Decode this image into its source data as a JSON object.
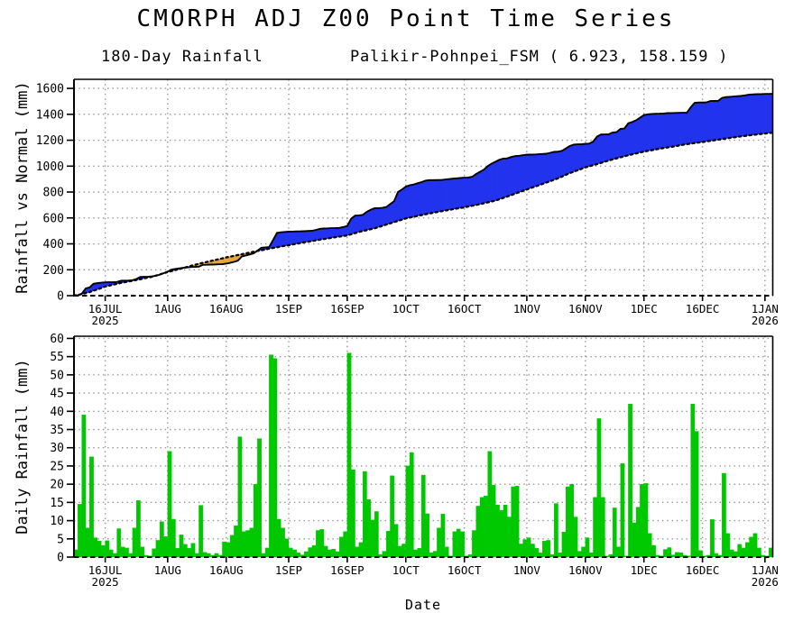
{
  "title": "CMORPH ADJ Z00 Point Time Series",
  "station_label": "Palikir-Pohnpei_FSM ( 6.923, 158.159 )",
  "xlabel": "Date",
  "chart_data": [
    {
      "type": "area",
      "title": "180-Day Rainfall",
      "ylabel": "Rainfall vs Normal (mm)",
      "ylim": [
        0,
        1670
      ],
      "yticks": [
        0,
        200,
        400,
        600,
        800,
        1000,
        1200,
        1400,
        1600
      ],
      "x_days_total": 179,
      "xticks": [
        {
          "day": 8,
          "label": "16JUL",
          "sublabel": "2025"
        },
        {
          "day": 24,
          "label": "1AUG"
        },
        {
          "day": 39,
          "label": "16AUG"
        },
        {
          "day": 55,
          "label": "1SEP"
        },
        {
          "day": 70,
          "label": "16SEP"
        },
        {
          "day": 85,
          "label": "1OCT"
        },
        {
          "day": 100,
          "label": "16OCT"
        },
        {
          "day": 116,
          "label": "1NOV"
        },
        {
          "day": 131,
          "label": "16NOV"
        },
        {
          "day": 146,
          "label": "1DEC"
        },
        {
          "day": 161,
          "label": "16DEC"
        },
        {
          "day": 177,
          "label": "1JAN",
          "sublabel": "2026"
        }
      ],
      "grid_color": "#999999",
      "fill_above_color": "#2233ee",
      "fill_below_color": "#e3a83a",
      "series": [
        {
          "name": "observed_accumulated_rainfall",
          "line": "solid",
          "color": "#000000",
          "points": [
            [
              0,
              0
            ],
            [
              1,
              3
            ],
            [
              2,
              16
            ],
            [
              3,
              56
            ],
            [
              4,
              64
            ],
            [
              5,
              92
            ],
            [
              6,
              97
            ],
            [
              7,
              100
            ],
            [
              8,
              103
            ],
            [
              10,
              104
            ],
            [
              11,
              106
            ],
            [
              12,
              115
            ],
            [
              14,
              117
            ],
            [
              15,
              120
            ],
            [
              16,
              129
            ],
            [
              17,
              145
            ],
            [
              19,
              146
            ],
            [
              20,
              149
            ],
            [
              21,
              153
            ],
            [
              22,
              163
            ],
            [
              23,
              174
            ],
            [
              24,
              186
            ],
            [
              25,
              202
            ],
            [
              26,
              207
            ],
            [
              27,
              211
            ],
            [
              28,
              215
            ],
            [
              29,
              218
            ],
            [
              30,
              221
            ],
            [
              31,
              222
            ],
            [
              32,
              224
            ],
            [
              33,
              238
            ],
            [
              35,
              240
            ],
            [
              36,
              241
            ],
            [
              38,
              243
            ],
            [
              39,
              247
            ],
            [
              40,
              253
            ],
            [
              41,
              261
            ],
            [
              42,
              270
            ],
            [
              43,
              303
            ],
            [
              44,
              310
            ],
            [
              45,
              318
            ],
            [
              46,
              326
            ],
            [
              47,
              348
            ],
            [
              48,
              370
            ],
            [
              49,
              372
            ],
            [
              50,
              375
            ],
            [
              51,
              430
            ],
            [
              52,
              484
            ],
            [
              53,
              489
            ],
            [
              54,
              492
            ],
            [
              55,
              494
            ],
            [
              57,
              496
            ],
            [
              59,
              498
            ],
            [
              61,
              501
            ],
            [
              62,
              508
            ],
            [
              63,
              516
            ],
            [
              64,
              519
            ],
            [
              66,
              521
            ],
            [
              68,
              523
            ],
            [
              69,
              530
            ],
            [
              70,
              538
            ],
            [
              71,
              594
            ],
            [
              72,
              618
            ],
            [
              73,
              620
            ],
            [
              74,
              624
            ],
            [
              75,
              647
            ],
            [
              76,
              663
            ],
            [
              77,
              675
            ],
            [
              78,
              676
            ],
            [
              79,
              678
            ],
            [
              80,
              685
            ],
            [
              81,
              707
            ],
            [
              82,
              729
            ],
            [
              83,
              800
            ],
            [
              84,
              820
            ],
            [
              85,
              842
            ],
            [
              86,
              852
            ],
            [
              87,
              858
            ],
            [
              88,
              868
            ],
            [
              89,
              876
            ],
            [
              90,
              888
            ],
            [
              91,
              892
            ],
            [
              94,
              893
            ],
            [
              96,
              900
            ],
            [
              98,
              906
            ],
            [
              100,
              911
            ],
            [
              101,
              912
            ],
            [
              102,
              918
            ],
            [
              103,
              939
            ],
            [
              104,
              956
            ],
            [
              105,
              973
            ],
            [
              106,
              1000
            ],
            [
              107,
              1020
            ],
            [
              108,
              1035
            ],
            [
              109,
              1050
            ],
            [
              110,
              1058
            ],
            [
              111,
              1060
            ],
            [
              112,
              1070
            ],
            [
              113,
              1077
            ],
            [
              114,
              1080
            ],
            [
              115,
              1084
            ],
            [
              116,
              1088
            ],
            [
              118,
              1090
            ],
            [
              119,
              1092
            ],
            [
              121,
              1096
            ],
            [
              123,
              1110
            ],
            [
              124,
              1112
            ],
            [
              125,
              1118
            ],
            [
              126,
              1136
            ],
            [
              127,
              1155
            ],
            [
              128,
              1166
            ],
            [
              129,
              1168
            ],
            [
              130,
              1170
            ],
            [
              131,
              1172
            ],
            [
              132,
              1174
            ],
            [
              133,
              1190
            ],
            [
              134,
              1228
            ],
            [
              135,
              1244
            ],
            [
              137,
              1246
            ],
            [
              138,
              1260
            ],
            [
              139,
              1262
            ],
            [
              140,
              1288
            ],
            [
              141,
              1290
            ],
            [
              142,
              1331
            ],
            [
              143,
              1340
            ],
            [
              144,
              1354
            ],
            [
              145,
              1374
            ],
            [
              146,
              1394
            ],
            [
              147,
              1400
            ],
            [
              148,
              1403
            ],
            [
              149,
              1404
            ],
            [
              151,
              1406
            ],
            [
              152,
              1409
            ],
            [
              153,
              1410
            ],
            [
              155,
              1411
            ],
            [
              157,
              1412
            ],
            [
              158,
              1454
            ],
            [
              159,
              1489
            ],
            [
              160,
              1491
            ],
            [
              161,
              1491
            ],
            [
              162,
              1492
            ],
            [
              163,
              1502
            ],
            [
              164,
              1503
            ],
            [
              165,
              1504
            ],
            [
              166,
              1527
            ],
            [
              167,
              1533
            ],
            [
              168,
              1535
            ],
            [
              169,
              1537
            ],
            [
              170,
              1540
            ],
            [
              171,
              1543
            ],
            [
              172,
              1547
            ],
            [
              173,
              1552
            ],
            [
              174,
              1554
            ],
            [
              175,
              1556
            ],
            [
              176,
              1556
            ],
            [
              177,
              1557
            ],
            [
              179,
              1558
            ]
          ]
        },
        {
          "name": "normal_accumulated_rainfall",
          "line": "dotted",
          "color": "#000000",
          "points": [
            [
              0,
              0
            ],
            [
              2,
              12
            ],
            [
              4,
              28
            ],
            [
              6,
              48
            ],
            [
              8,
              70
            ],
            [
              12,
              98
            ],
            [
              16,
              121
            ],
            [
              20,
              146
            ],
            [
              24,
              182
            ],
            [
              26,
              198
            ],
            [
              28,
              214
            ],
            [
              32,
              246
            ],
            [
              36,
              274
            ],
            [
              39,
              295
            ],
            [
              43,
              320
            ],
            [
              47,
              345
            ],
            [
              51,
              368
            ],
            [
              55,
              390
            ],
            [
              59,
              412
            ],
            [
              63,
              432
            ],
            [
              66,
              447
            ],
            [
              70,
              465
            ],
            [
              73,
              492
            ],
            [
              77,
              520
            ],
            [
              81,
              558
            ],
            [
              85,
              596
            ],
            [
              89,
              622
            ],
            [
              92,
              640
            ],
            [
              96,
              662
            ],
            [
              100,
              682
            ],
            [
              104,
              706
            ],
            [
              108,
              734
            ],
            [
              112,
              776
            ],
            [
              116,
              820
            ],
            [
              120,
              862
            ],
            [
              124,
              906
            ],
            [
              127,
              946
            ],
            [
              131,
              990
            ],
            [
              134,
              1016
            ],
            [
              138,
              1052
            ],
            [
              142,
              1084
            ],
            [
              146,
              1112
            ],
            [
              150,
              1134
            ],
            [
              154,
              1154
            ],
            [
              157,
              1170
            ],
            [
              161,
              1186
            ],
            [
              165,
              1204
            ],
            [
              169,
              1222
            ],
            [
              173,
              1238
            ],
            [
              177,
              1252
            ],
            [
              179,
              1258
            ]
          ]
        }
      ]
    },
    {
      "type": "bar",
      "ylabel": "Daily Rainfall (mm)",
      "ylim": [
        0,
        60.6
      ],
      "yticks": [
        0,
        5,
        10,
        15,
        20,
        25,
        30,
        35,
        40,
        45,
        50,
        55,
        60
      ],
      "x_days_total": 179,
      "xticks": [
        {
          "day": 8,
          "label": "16JUL",
          "sublabel": "2025"
        },
        {
          "day": 24,
          "label": "1AUG"
        },
        {
          "day": 39,
          "label": "16AUG"
        },
        {
          "day": 55,
          "label": "1SEP"
        },
        {
          "day": 70,
          "label": "16SEP"
        },
        {
          "day": 85,
          "label": "1OCT"
        },
        {
          "day": 100,
          "label": "16OCT"
        },
        {
          "day": 116,
          "label": "1NOV"
        },
        {
          "day": 131,
          "label": "16NOV"
        },
        {
          "day": 146,
          "label": "1DEC"
        },
        {
          "day": 161,
          "label": "16DEC"
        },
        {
          "day": 177,
          "label": "1JAN",
          "sublabel": "2026"
        }
      ],
      "grid_color": "#999999",
      "bar_color": "#00c800",
      "values": [
        2,
        14.5,
        39,
        8,
        27.5,
        5.3,
        4.4,
        3.2,
        4.5,
        2,
        1,
        7.8,
        2.8,
        2.5,
        1,
        8,
        15.5,
        2.8,
        0.5,
        0.3,
        2.3,
        4.6,
        9.7,
        5.6,
        29,
        10.4,
        2.4,
        6.1,
        3.5,
        2.4,
        3.8,
        1,
        14.2,
        1.3,
        1,
        0.5,
        1,
        0.5,
        4.2,
        4,
        6,
        8.6,
        33,
        7,
        7.3,
        8,
        20,
        32.5,
        1,
        2.5,
        55.5,
        54.5,
        10.4,
        8,
        5,
        2.5,
        2,
        1.2,
        0.6,
        1.5,
        2.6,
        3.2,
        7.3,
        7.6,
        3,
        2,
        2.2,
        1.5,
        5.5,
        7,
        56,
        24,
        2.8,
        4,
        23.5,
        15.8,
        10.2,
        12.5,
        0.7,
        1.6,
        7.1,
        22.3,
        9,
        3,
        3.6,
        25,
        28.7,
        2,
        2.4,
        22.5,
        11.9,
        1.2,
        1.6,
        8,
        11.8,
        2.8,
        0.3,
        7,
        7.7,
        7,
        0.3,
        0.7,
        7.3,
        14,
        16.4,
        16.8,
        29,
        19.7,
        14.3,
        12.8,
        14.3,
        11,
        19.3,
        19.5,
        3.6,
        4.8,
        5.3,
        3.6,
        2.4,
        1.2,
        4.4,
        4.6,
        0.7,
        14.7,
        1.2,
        6.9,
        19.3,
        20,
        11,
        1.6,
        2.8,
        5.3,
        1.2,
        16.4,
        38,
        16.4,
        0.3,
        0.7,
        13.5,
        2.8,
        25.7,
        0.3,
        42,
        9.4,
        13.7,
        20,
        20.2,
        6.5,
        3.2,
        0.5,
        0.3,
        2.1,
        2.6,
        0.6,
        1.3,
        1.2,
        0.5,
        0.3,
        42,
        34.5,
        1.8,
        0.3,
        0.5,
        10.3,
        1,
        0.5,
        23,
        6.5,
        2,
        1.5,
        3.5,
        2.5,
        4,
        5.5,
        6.5,
        2.5,
        0.5,
        0.3,
        2.5,
        0.3
      ]
    }
  ]
}
